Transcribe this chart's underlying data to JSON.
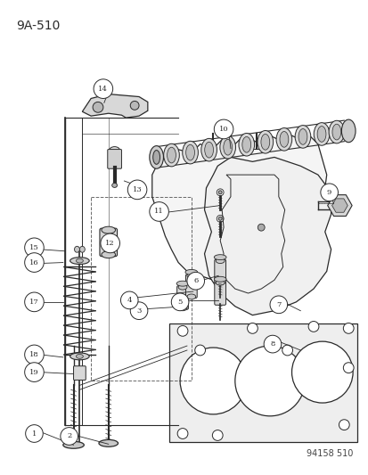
{
  "title_label": "9A-510",
  "footer_label": "94158 510",
  "bg_color": "#ffffff",
  "line_color": "#2a2a2a",
  "title_fontsize": 10,
  "footer_fontsize": 7,
  "callout_fontsize": 6.0,
  "fig_width": 4.14,
  "fig_height": 5.33,
  "dpi": 100
}
